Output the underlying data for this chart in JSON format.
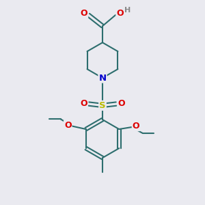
{
  "bg_color": "#eaeaf0",
  "bond_color": "#2d6e6e",
  "bond_width": 1.5,
  "atom_colors": {
    "O": "#dd0000",
    "N": "#0000cc",
    "S": "#bbbb00",
    "C": "#2d6e6e",
    "H": "#888888"
  },
  "font_size": 8.5,
  "fig_size": [
    3.0,
    3.0
  ],
  "dpi": 100
}
